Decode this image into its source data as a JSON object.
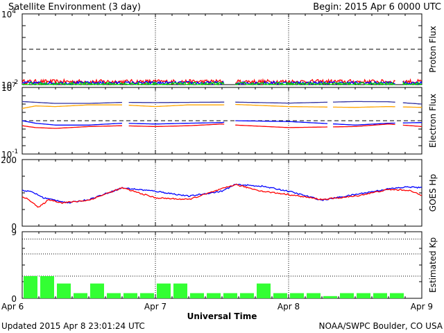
{
  "header": {
    "title": "Satellite Environment (3 day)",
    "begin": "Begin:  2015 Apr 6 0000 UTC"
  },
  "footer": {
    "updated": "Updated 2015 Apr  8 23:01:24 UTC",
    "credit": "NOAA/SWPC Boulder, CO USA"
  },
  "colors": {
    "red": "#ff0000",
    "blue": "#0000ff",
    "green": "#00e000",
    "orange": "#ffa500",
    "navy": "#3030a0",
    "kp_bar": "#33ff33"
  },
  "chart_data": [
    {
      "type": "line",
      "ylabel": "Proton Flux",
      "yscale": "log",
      "ylim": [
        0.01,
        10000
      ],
      "ytick_labels": [
        {
          "base": "10",
          "exp": "4",
          "value": 10000
        },
        {
          "base": "10",
          "exp": "-2",
          "value": 0.01
        }
      ],
      "reference_lines": [
        10
      ],
      "data_gap_days": [
        [
          0.0,
          0.0
        ],
        [
          1.52,
          1.6
        ],
        [
          2.8,
          2.85
        ]
      ],
      "series": [
        {
          "color": "red",
          "level": 0.018,
          "jitter": 0.35
        },
        {
          "color": "blue",
          "level": 0.014,
          "jitter": 0.25
        },
        {
          "color": "green",
          "level": 0.011,
          "jitter": 0.3
        }
      ]
    },
    {
      "type": "line",
      "ylabel": "Electron Flux",
      "yscale": "log",
      "ylim": [
        0.1,
        10000000
      ],
      "ytick_labels": [
        {
          "base": "10",
          "exp": "7",
          "value": 10000000
        },
        {
          "base": "10",
          "exp": "-1",
          "value": 0.1
        }
      ],
      "reference_lines": [
        1000
      ],
      "data_gap_days": [
        [
          0.75,
          0.8
        ],
        [
          1.52,
          1.6
        ],
        [
          2.3,
          2.33
        ],
        [
          2.8,
          2.85
        ]
      ],
      "series": [
        {
          "color": "navy",
          "x": [
            0,
            0.25,
            0.5,
            0.75,
            1.0,
            1.25,
            1.5,
            1.6,
            2.0,
            2.5,
            2.75,
            3.0
          ],
          "y": [
            200000,
            120000,
            120000,
            160000,
            150000,
            160000,
            170000,
            170000,
            130000,
            200000,
            190000,
            100000
          ]
        },
        {
          "color": "orange",
          "x": [
            0,
            0.1,
            0.25,
            0.5,
            0.75,
            1.0,
            1.25,
            1.5,
            1.6,
            2.0,
            2.5,
            2.75,
            3.0
          ],
          "y": [
            30000,
            60000,
            50000,
            80000,
            80000,
            50000,
            80000,
            80000,
            90000,
            50000,
            40000,
            50000,
            40000
          ]
        },
        {
          "color": "blue",
          "x": [
            0,
            0.1,
            0.25,
            0.5,
            0.75,
            1.0,
            1.25,
            1.5,
            1.6,
            2.0,
            2.5,
            2.75,
            3.0
          ],
          "y": [
            1000,
            500,
            300,
            300,
            500,
            400,
            500,
            600,
            1000,
            800,
            300,
            500,
            600
          ]
        },
        {
          "color": "red",
          "x": [
            0,
            0.1,
            0.25,
            0.5,
            0.75,
            1.0,
            1.25,
            1.5,
            1.6,
            2.0,
            2.5,
            2.75,
            3.0
          ],
          "y": [
            250,
            150,
            120,
            200,
            250,
            200,
            250,
            400,
            300,
            150,
            200,
            400,
            200
          ]
        }
      ]
    },
    {
      "type": "line",
      "ylabel": "GOES Hp",
      "ylim": [
        0,
        200
      ],
      "yticks": [
        200,
        0
      ],
      "series": [
        {
          "color": "blue",
          "x": [
            0,
            0.08,
            0.16,
            0.25,
            0.35,
            0.5,
            0.75,
            1.0,
            1.25,
            1.5,
            1.6,
            1.8,
            2.0,
            2.25,
            2.5,
            2.75,
            2.9,
            3.0
          ],
          "y": [
            108,
            102,
            85,
            78,
            70,
            80,
            115,
            105,
            90,
            105,
            125,
            120,
            105,
            78,
            95,
            112,
            118,
            115
          ]
        },
        {
          "color": "red",
          "x": [
            0,
            0.08,
            0.12,
            0.2,
            0.3,
            0.5,
            0.75,
            1.0,
            1.25,
            1.5,
            1.6,
            1.8,
            2.0,
            2.25,
            2.5,
            2.75,
            2.9,
            3.0
          ],
          "y": [
            90,
            72,
            55,
            80,
            70,
            78,
            115,
            85,
            80,
            112,
            125,
            105,
            95,
            80,
            90,
            110,
            108,
            92
          ]
        }
      ]
    },
    {
      "type": "bar",
      "ylabel": "Estimated Kp",
      "ylim": [
        0,
        9
      ],
      "yticks": [
        9,
        0
      ],
      "dotted_levels": [
        3,
        6,
        8
      ],
      "bar_width_hours": 3,
      "values": [
        3.0,
        3.0,
        2.0,
        0.7,
        2.0,
        0.7,
        0.7,
        0.7,
        2.0,
        2.0,
        0.7,
        0.7,
        0.7,
        0.7,
        2.0,
        0.7,
        0.7,
        0.7,
        0.3,
        0.7,
        0.7,
        0.7,
        0.7,
        0.0
      ]
    }
  ],
  "xaxis": {
    "label": "Universal Time",
    "ticks": [
      "Apr 6",
      "Apr 7",
      "Apr 8",
      "Apr 9"
    ],
    "days": 3
  }
}
